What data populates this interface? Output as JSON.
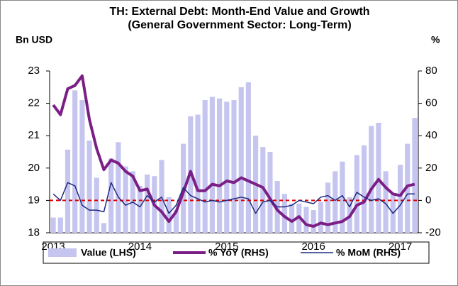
{
  "chart_data": {
    "type": "bar_line_dual",
    "title": "TH: External Debt: Month-End Value and Growth",
    "subtitle": "(General Government Sector: Long-Term)",
    "y_label": "Bn USD",
    "y2_label": "%",
    "categories": [
      "2013",
      null,
      null,
      null,
      null,
      null,
      null,
      null,
      null,
      null,
      null,
      null,
      "2014",
      null,
      null,
      null,
      null,
      null,
      null,
      null,
      null,
      null,
      null,
      null,
      "2015",
      null,
      null,
      null,
      null,
      null,
      null,
      null,
      null,
      null,
      null,
      null,
      "2016",
      null,
      null,
      null,
      null,
      null,
      null,
      null,
      null,
      null,
      null,
      null,
      "2017",
      null,
      null
    ],
    "series": [
      {
        "name": "Value (LHS)",
        "color": "#c5c5f0",
        "kind": "bar",
        "axis": "y",
        "values": [
          18.47,
          18.47,
          20.57,
          22.4,
          22.1,
          20.85,
          19.7,
          18.3,
          20.3,
          20.8,
          20.05,
          19.9,
          19.45,
          19.8,
          19.75,
          20.25,
          19.1,
          18.7,
          20.75,
          21.6,
          21.65,
          22.1,
          22.2,
          22.15,
          22.05,
          22.1,
          22.5,
          22.65,
          21.0,
          20.65,
          20.5,
          19.6,
          19.2,
          18.9,
          18.9,
          18.8,
          18.7,
          18.95,
          19.55,
          19.9,
          20.2,
          19.1,
          20.4,
          20.7,
          21.3,
          21.4,
          19.9,
          19.2,
          20.1,
          20.75,
          21.55
        ]
      },
      {
        "name": "% YoY (RHS)",
        "color": "#7b1f86",
        "kind": "line",
        "width": 4,
        "axis": "y2",
        "values": [
          59,
          53,
          69,
          71,
          77,
          50,
          32,
          19,
          25,
          23,
          18,
          15,
          6,
          7,
          -3,
          -7,
          -13,
          -7,
          5,
          18,
          6,
          6,
          10,
          9,
          12,
          11,
          14,
          12,
          10,
          8,
          1,
          -6,
          -10,
          -13,
          -10,
          -15,
          -16,
          -14,
          -15,
          -14,
          -13,
          -10,
          -3,
          -1,
          7,
          13,
          8,
          4,
          3,
          9,
          10
        ]
      },
      {
        "name": "% MoM (RHS)",
        "color": "#1f2a80",
        "kind": "line",
        "width": 1.5,
        "axis": "y2",
        "values": [
          4,
          0,
          11,
          9,
          -3,
          -6,
          -6,
          -7,
          11,
          2,
          -3,
          -1,
          -4,
          3,
          -1,
          2,
          -8,
          -3,
          8,
          3,
          1,
          -1,
          0,
          -1,
          0,
          1,
          2,
          1,
          -8,
          -1,
          0,
          -4,
          -4,
          -3,
          0,
          -1,
          -2,
          2,
          3,
          0,
          3,
          -4,
          5,
          2,
          0,
          1,
          -2,
          -8,
          -3,
          4,
          4
        ]
      }
    ],
    "ylim": [
      18,
      23
    ],
    "yticks": [
      18,
      19,
      20,
      21,
      22,
      23
    ],
    "y2lim": [
      -20,
      80
    ],
    "y2ticks": [
      -20,
      0,
      20,
      40,
      60,
      80
    ],
    "zero_line_color": "#e00000"
  }
}
